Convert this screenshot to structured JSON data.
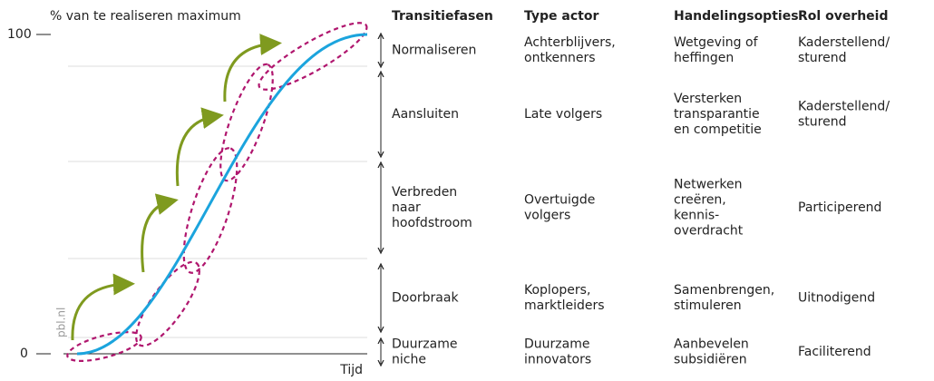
{
  "axis": {
    "y_label": "% van te realiseren maximum",
    "y_top": "100",
    "y_bottom": "0",
    "x_label": "Tijd",
    "source": "pbl.nl"
  },
  "table": {
    "headers": [
      "Transitiefasen",
      "Type actor",
      "Handelingsopties",
      "Rol overheid"
    ],
    "rows": [
      [
        [
          "Normaliseren"
        ],
        [
          "Achterblijvers,",
          "ontkenners"
        ],
        [
          "Wetgeving of",
          "heffingen"
        ],
        [
          "Kaderstellend/",
          "sturend"
        ]
      ],
      [
        [
          "Aansluiten"
        ],
        [
          "Late volgers"
        ],
        [
          "Versterken",
          "transparantie",
          "en competitie"
        ],
        [
          "Kaderstellend/",
          "sturend"
        ]
      ],
      [
        [
          "Verbreden",
          "naar",
          "hoofdstroom"
        ],
        [
          "Overtuigde",
          "volgers"
        ],
        [
          "Netwerken",
          "creëren,",
          "kennis-",
          "overdracht"
        ],
        [
          "Participerend"
        ]
      ],
      [
        [
          "Doorbraak"
        ],
        [
          "Koplopers,",
          "marktleiders"
        ],
        [
          "Samenbrengen,",
          "stimuleren"
        ],
        [
          "Uitnodigend"
        ]
      ],
      [
        [
          "Duurzame",
          "niche"
        ],
        [
          "Duurzame",
          "innovators"
        ],
        [
          "Aanbevelen",
          "subsidiëren"
        ],
        [
          "Faciliterend"
        ]
      ]
    ]
  }
}
